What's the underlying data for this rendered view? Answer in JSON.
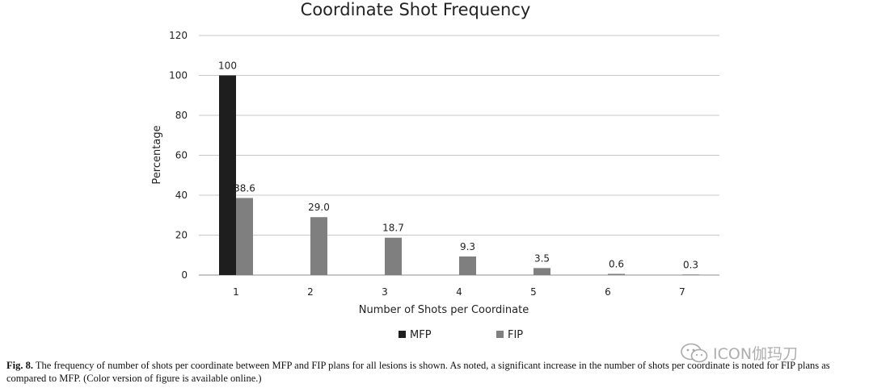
{
  "chart_data": {
    "type": "bar",
    "title": "Coordinate Shot Frequency",
    "xlabel": "Number  of Shots per Coordinate",
    "ylabel": "Percentage",
    "categories": [
      "1",
      "2",
      "3",
      "4",
      "5",
      "6",
      "7"
    ],
    "yticks": [
      "0",
      "20",
      "40",
      "60",
      "80",
      "100",
      "120"
    ],
    "ylim": [
      0,
      120
    ],
    "grid": true,
    "legend_position": "bottom",
    "series": [
      {
        "name": "MFP",
        "color": "#1e1e1e",
        "values": [
          100,
          0,
          0,
          0,
          0,
          0,
          0
        ],
        "labels": [
          "100",
          "",
          "",
          "",
          "",
          "",
          ""
        ]
      },
      {
        "name": "FIP",
        "color": "#7f7f7f",
        "values": [
          38.6,
          29.0,
          18.7,
          9.3,
          3.5,
          0.6,
          0.3
        ],
        "labels": [
          "38.6",
          "29.0",
          "18.7",
          "9.3",
          "3.5",
          "0.6",
          "0.3"
        ]
      }
    ]
  },
  "caption": {
    "fig_label": "Fig. 8.",
    "text": "The frequency of number of shots per coordinate between MFP and FIP plans for all lesions is shown. As noted, a significant increase in the number of shots per coordinate is noted for FIP plans as compared to MFP. (Color version of figure is available online.)"
  },
  "watermark": {
    "text": "ICON伽玛刀",
    "icon": "wechat-icon"
  }
}
